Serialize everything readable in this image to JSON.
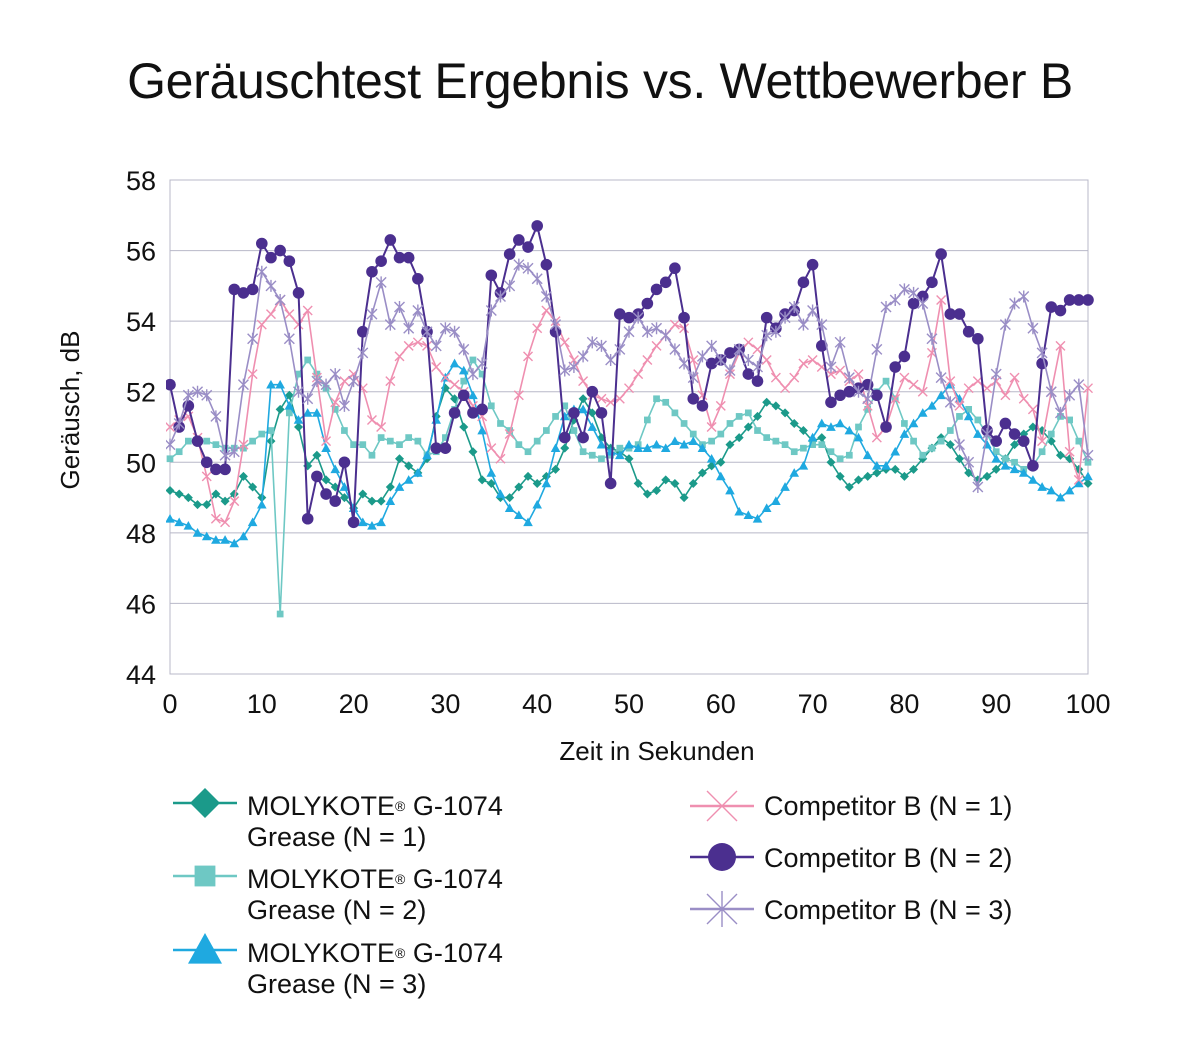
{
  "title": "Geräuschtest Ergebnis vs. Wettbewerber B",
  "chart_data": {
    "type": "line",
    "title": "Geräuschtest Ergebnis vs. Wettbewerber B",
    "xlabel": "Zeit in Sekunden",
    "ylabel": "Geräusch, dB",
    "xlim": [
      0,
      100
    ],
    "ylim": [
      44,
      58
    ],
    "xticks": [
      "0",
      "10",
      "20",
      "30",
      "40",
      "50",
      "60",
      "70",
      "80",
      "90",
      "100"
    ],
    "yticks": [
      "44",
      "46",
      "48",
      "50",
      "52",
      "54",
      "56",
      "58"
    ],
    "grid": "horizontal",
    "legend_position": "bottom",
    "series": [
      {
        "name": "MOLYKOTE® G-1074 Grease (N = 1)",
        "name_parts": {
          "brand": "MOLYKOTE",
          "mark": "®",
          "rest": " G-1074",
          "line2": "Grease (N = 1)"
        },
        "color": "#1b9a8a",
        "marker": "diamond",
        "values": [
          49.2,
          49.1,
          49.0,
          48.8,
          48.8,
          49.1,
          48.9,
          49.1,
          49.6,
          49.3,
          49.0,
          50.6,
          51.5,
          51.9,
          51.0,
          49.9,
          50.2,
          49.5,
          49.3,
          49.0,
          48.7,
          49.1,
          48.9,
          48.9,
          49.3,
          50.1,
          49.9,
          49.7,
          50.1,
          51.3,
          52.1,
          51.8,
          51.0,
          50.3,
          49.5,
          49.4,
          49.0,
          49.0,
          49.3,
          49.6,
          49.4,
          49.6,
          49.8,
          50.4,
          51.2,
          51.8,
          51.4,
          50.7,
          50.4,
          50.3,
          50.1,
          49.4,
          49.1,
          49.2,
          49.5,
          49.4,
          49.0,
          49.4,
          49.7,
          49.9,
          50.0,
          50.5,
          50.7,
          51.0,
          51.3,
          51.7,
          51.6,
          51.4,
          51.1,
          50.9,
          50.6,
          50.7,
          50.0,
          49.6,
          49.3,
          49.5,
          49.6,
          49.7,
          49.8,
          49.8,
          49.6,
          49.8,
          50.1,
          50.4,
          50.7,
          50.5,
          50.1,
          49.7,
          49.5,
          49.6,
          49.8,
          50.1,
          50.5,
          50.8,
          51.0,
          50.9,
          50.6,
          50.2,
          50.1,
          49.8,
          49.4
        ]
      },
      {
        "name": "MOLYKOTE® G-1074 Grease (N = 2)",
        "name_parts": {
          "brand": "MOLYKOTE",
          "mark": "®",
          "rest": " G-1074",
          "line2": "Grease (N = 2)"
        },
        "color": "#6ec8c4",
        "marker": "square",
        "values": [
          50.1,
          50.3,
          50.6,
          50.6,
          50.6,
          50.5,
          50.4,
          50.4,
          50.4,
          50.6,
          50.8,
          50.9,
          45.7,
          51.4,
          52.5,
          52.9,
          52.5,
          52.1,
          51.5,
          50.9,
          50.5,
          50.5,
          50.2,
          50.7,
          50.6,
          50.5,
          50.7,
          50.6,
          50.2,
          50.3,
          50.7,
          51.5,
          52.3,
          52.9,
          52.5,
          51.6,
          51.1,
          50.9,
          50.5,
          50.3,
          50.6,
          50.9,
          51.3,
          51.6,
          50.9,
          50.3,
          50.2,
          50.1,
          50.2,
          50.4,
          50.4,
          50.5,
          51.2,
          51.8,
          51.7,
          51.4,
          51.1,
          50.8,
          50.5,
          50.6,
          50.8,
          51.1,
          51.3,
          51.4,
          50.9,
          50.7,
          50.6,
          50.5,
          50.3,
          50.4,
          50.5,
          50.5,
          50.3,
          50.1,
          50.2,
          51.0,
          51.5,
          52.0,
          52.3,
          51.8,
          51.1,
          50.6,
          50.2,
          50.4,
          50.6,
          50.9,
          51.3,
          51.5,
          51.2,
          50.8,
          50.3,
          50.1,
          50.0,
          49.8,
          49.9,
          50.3,
          50.8,
          51.3,
          51.2,
          50.6,
          50.0
        ]
      },
      {
        "name": "MOLYKOTE® G-1074 Grease (N = 3)",
        "name_parts": {
          "brand": "MOLYKOTE",
          "mark": "®",
          "rest": " G-1074",
          "line2": "Grease (N = 3)"
        },
        "color": "#1fa9e0",
        "marker": "triangle",
        "values": [
          48.4,
          48.3,
          48.2,
          48.0,
          47.9,
          47.8,
          47.8,
          47.7,
          47.9,
          48.3,
          48.8,
          52.2,
          52.2,
          51.6,
          51.2,
          51.4,
          51.4,
          50.4,
          49.8,
          49.3,
          48.7,
          48.3,
          48.2,
          48.3,
          48.9,
          49.3,
          49.5,
          49.7,
          50.2,
          51.2,
          52.4,
          52.8,
          52.6,
          51.9,
          50.9,
          49.7,
          49.1,
          48.7,
          48.5,
          48.3,
          48.8,
          49.4,
          50.4,
          51.3,
          51.5,
          51.5,
          51.0,
          50.5,
          50.3,
          50.2,
          50.5,
          50.4,
          50.4,
          50.5,
          50.4,
          50.6,
          50.5,
          50.6,
          50.4,
          50.1,
          49.6,
          49.2,
          48.6,
          48.5,
          48.4,
          48.7,
          48.9,
          49.3,
          49.7,
          49.9,
          50.7,
          51.1,
          51.0,
          51.1,
          50.9,
          50.7,
          50.2,
          49.9,
          49.9,
          50.3,
          50.8,
          51.1,
          51.4,
          51.6,
          51.9,
          52.2,
          51.8,
          51.3,
          50.8,
          50.5,
          50.1,
          49.9,
          49.8,
          49.7,
          49.5,
          49.3,
          49.2,
          49.0,
          49.2,
          49.4,
          49.6
        ]
      },
      {
        "name": "Competitor B (N = 1)",
        "name_parts": {
          "line1": "Competitor B (N = 1)"
        },
        "color": "#ef8fb0",
        "marker": "x",
        "values": [
          51.0,
          51.2,
          51.3,
          50.7,
          49.6,
          48.4,
          48.3,
          48.9,
          50.5,
          52.5,
          53.9,
          54.2,
          54.6,
          54.2,
          53.9,
          54.3,
          52.4,
          50.6,
          51.7,
          52.3,
          52.5,
          52.1,
          51.2,
          51.0,
          52.3,
          53.0,
          53.3,
          53.4,
          53.3,
          52.7,
          52.4,
          52.2,
          52.0,
          51.6,
          51.3,
          50.4,
          50.1,
          50.8,
          51.9,
          53.0,
          53.8,
          54.3,
          54.0,
          53.4,
          52.9,
          52.3,
          51.9,
          51.8,
          51.7,
          51.8,
          52.1,
          52.5,
          52.9,
          53.3,
          53.6,
          53.9,
          53.8,
          52.9,
          51.9,
          51.0,
          51.6,
          52.5,
          53.1,
          53.4,
          53.2,
          52.9,
          52.4,
          52.1,
          52.4,
          52.8,
          52.9,
          52.7,
          52.5,
          52.6,
          52.3,
          52.5,
          51.6,
          50.7,
          51.0,
          51.8,
          52.4,
          52.2,
          52.0,
          53.1,
          54.6,
          52.3,
          51.6,
          52.1,
          52.3,
          52.1,
          52.3,
          51.9,
          52.4,
          51.8,
          51.5,
          50.6,
          52.0,
          53.3,
          50.3,
          49.5,
          52.1
        ]
      },
      {
        "name": "Competitor B (N = 2)",
        "name_parts": {
          "line1": "Competitor B (N = 2)"
        },
        "color": "#4b2f8f",
        "marker": "circle",
        "values": [
          52.2,
          51.0,
          51.6,
          50.6,
          50.0,
          49.8,
          49.8,
          54.9,
          54.8,
          54.9,
          56.2,
          55.8,
          56.0,
          55.7,
          54.8,
          48.4,
          49.6,
          49.1,
          48.9,
          50.0,
          48.3,
          53.7,
          55.4,
          55.7,
          56.3,
          55.8,
          55.8,
          55.2,
          53.7,
          50.4,
          50.4,
          51.4,
          51.9,
          51.4,
          51.5,
          55.3,
          54.8,
          55.9,
          56.3,
          56.1,
          56.7,
          55.6,
          53.7,
          50.7,
          51.4,
          50.7,
          52.0,
          51.4,
          49.4,
          54.2,
          54.1,
          54.2,
          54.5,
          54.9,
          55.1,
          55.5,
          54.1,
          51.8,
          51.6,
          52.8,
          52.9,
          53.1,
          53.2,
          52.5,
          52.3,
          54.1,
          53.8,
          54.2,
          54.3,
          55.1,
          55.6,
          53.3,
          51.7,
          51.9,
          52.0,
          52.1,
          52.2,
          51.9,
          51.0,
          52.7,
          53.0,
          54.5,
          54.7,
          55.1,
          55.9,
          54.2,
          54.2,
          53.7,
          53.5,
          50.9,
          50.6,
          51.1,
          50.8,
          50.6,
          49.9,
          52.8,
          54.4,
          54.3,
          54.6,
          54.6,
          54.6
        ]
      },
      {
        "name": "Competitor B (N = 3)",
        "name_parts": {
          "line1": "Competitor B (N = 3)"
        },
        "color": "#9a8ec6",
        "marker": "star",
        "values": [
          50.5,
          51.1,
          51.9,
          52.0,
          51.9,
          51.3,
          50.2,
          50.3,
          52.2,
          53.5,
          55.4,
          55.0,
          54.6,
          53.5,
          52.0,
          51.8,
          52.3,
          52.2,
          52.5,
          51.6,
          52.3,
          53.1,
          54.2,
          55.1,
          53.9,
          54.4,
          53.8,
          54.3,
          53.7,
          53.3,
          53.8,
          53.7,
          53.2,
          52.5,
          52.8,
          54.3,
          54.7,
          55.0,
          55.6,
          55.5,
          55.2,
          54.7,
          53.9,
          52.6,
          52.7,
          53.0,
          53.4,
          53.3,
          52.9,
          53.2,
          53.7,
          54.1,
          53.7,
          53.8,
          53.6,
          53.2,
          52.8,
          52.4,
          53.0,
          53.3,
          52.9,
          52.6,
          53.2,
          52.9,
          52.7,
          53.6,
          53.7,
          54.1,
          54.4,
          53.9,
          54.3,
          53.9,
          52.7,
          53.4,
          52.4,
          52.0,
          51.8,
          53.2,
          54.4,
          54.6,
          54.9,
          54.8,
          54.5,
          53.5,
          52.4,
          51.7,
          50.5,
          50.0,
          49.3,
          50.8,
          52.5,
          53.9,
          54.5,
          54.7,
          53.8,
          53.1,
          52.0,
          51.4,
          51.9,
          52.2,
          50.2
        ]
      }
    ]
  }
}
